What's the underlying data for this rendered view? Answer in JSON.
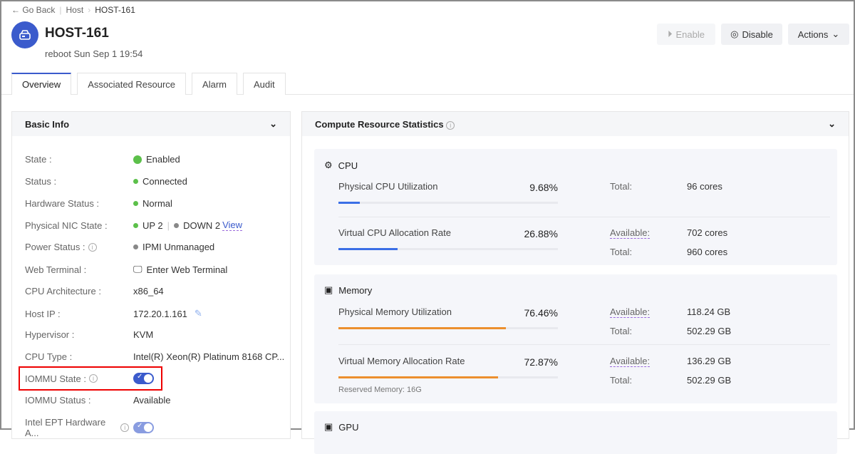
{
  "breadcrumb": {
    "back": "Go Back",
    "parent": "Host",
    "current": "HOST-161"
  },
  "header": {
    "title": "HOST-161",
    "subtitle": "reboot Sun Sep 1 19:54",
    "enable": "Enable",
    "disable": "Disable",
    "actions": "Actions"
  },
  "tabs": [
    "Overview",
    "Associated Resource",
    "Alarm",
    "Audit"
  ],
  "basic": {
    "title": "Basic Info",
    "rows": [
      {
        "label": "State :",
        "value": "Enabled"
      },
      {
        "label": "Status :",
        "value": "Connected"
      },
      {
        "label": "Hardware Status :",
        "value": "Normal"
      },
      {
        "label": "Physical NIC State :",
        "up": "UP 2",
        "down": "DOWN 2",
        "link": "View"
      },
      {
        "label": "Power Status :",
        "value": "IPMI Unmanaged"
      },
      {
        "label": "Web Terminal :",
        "value": "Enter Web Terminal"
      },
      {
        "label": "CPU Architecture :",
        "value": "x86_64"
      },
      {
        "label": "Host IP :",
        "value": "172.20.1.161"
      },
      {
        "label": "Hypervisor :",
        "value": "KVM"
      },
      {
        "label": "CPU Type :",
        "value": "Intel(R) Xeon(R) Platinum 8168 CP..."
      },
      {
        "label": "IOMMU State :",
        "value": true
      },
      {
        "label": "IOMMU Status :",
        "value": "Available"
      },
      {
        "label": "Intel EPT Hardware A...",
        "value": true
      }
    ]
  },
  "colors": {
    "accent": "#3b5bcc",
    "green": "#5cc04a",
    "cpu_bar": "#3b6fe6",
    "mem_bar": "#ec8f2e"
  },
  "stats": {
    "title": "Compute Resource Statistics",
    "cpu": {
      "title": "CPU",
      "phys_label": "Physical CPU Utilization",
      "phys_pct": "9.68%",
      "phys_total_k": "Total:",
      "phys_total": "96 cores",
      "virt_label": "Virtual CPU Allocation Rate",
      "virt_pct": "26.88%",
      "virt_avail_k": "Available:",
      "virt_avail": "702 cores",
      "virt_total_k": "Total:",
      "virt_total": "960 cores"
    },
    "memory": {
      "title": "Memory",
      "phys_label": "Physical Memory Utilization",
      "phys_pct": "76.46%",
      "phys_avail_k": "Available:",
      "phys_avail": "118.24 GB",
      "phys_total_k": "Total:",
      "phys_total": "502.29 GB",
      "virt_label": "Virtual Memory Allocation Rate",
      "virt_pct": "72.87%",
      "virt_avail_k": "Available:",
      "virt_avail": "136.29 GB",
      "virt_total_k": "Total:",
      "virt_total": "502.29 GB",
      "reserved": "Reserved Memory:  16G"
    },
    "gpu": {
      "title": "GPU"
    }
  }
}
